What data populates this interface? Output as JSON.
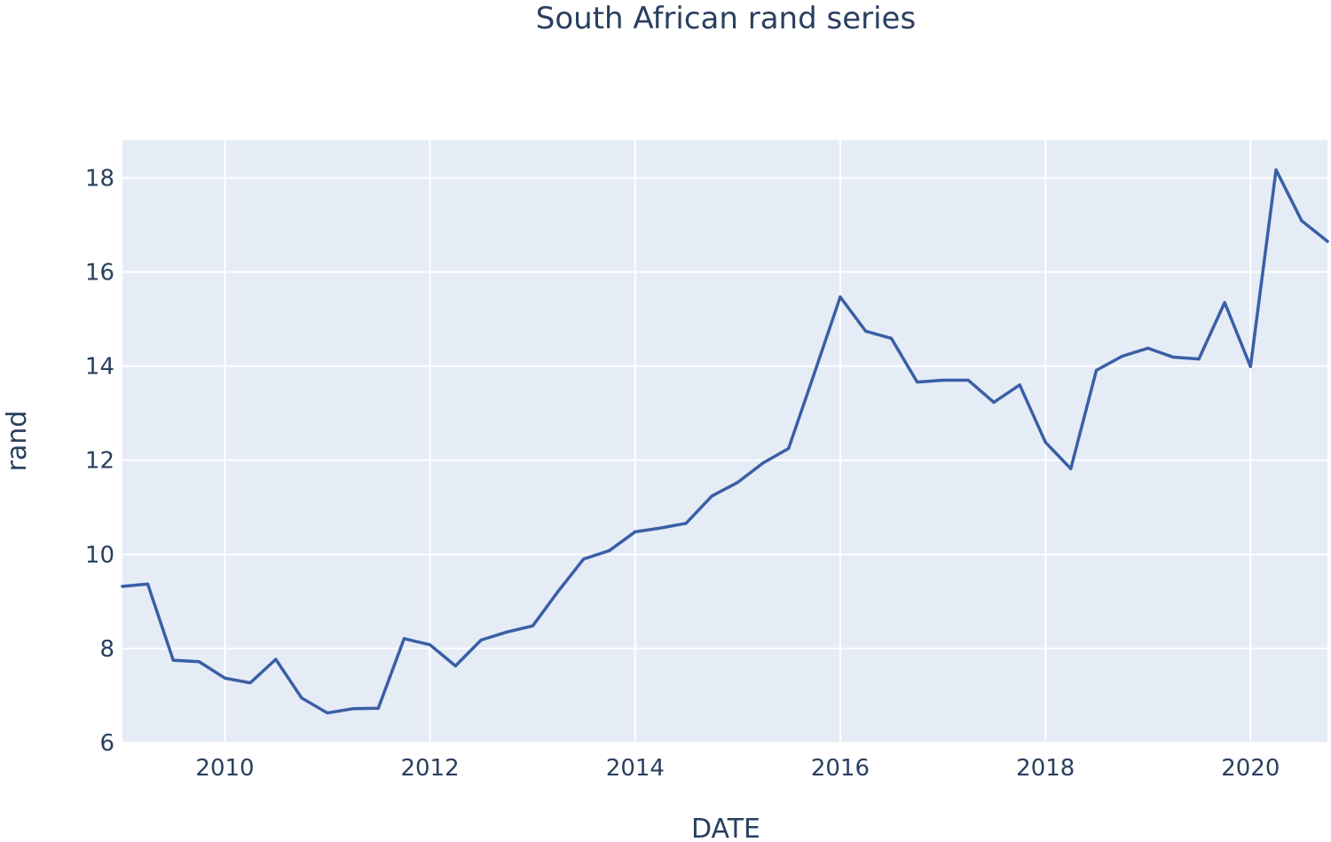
{
  "chart_data": {
    "type": "line",
    "title": "South African rand series",
    "xlabel": "DATE",
    "ylabel": "rand",
    "xlim": [
      "2009-01-01",
      "2020-10-01"
    ],
    "ylim": [
      6,
      18.8
    ],
    "x_ticks": [
      "2010",
      "2012",
      "2014",
      "2016",
      "2018",
      "2020"
    ],
    "y_ticks": [
      6,
      8,
      10,
      12,
      14,
      16,
      18
    ],
    "grid": true,
    "legend": "none",
    "background_color": "#e5ecf6",
    "series_color": "#3a5fa5",
    "x": [
      "2009-01-01",
      "2009-04-01",
      "2009-07-01",
      "2009-10-01",
      "2010-01-01",
      "2010-04-01",
      "2010-07-01",
      "2010-10-01",
      "2011-01-01",
      "2011-04-01",
      "2011-07-01",
      "2011-10-01",
      "2012-01-01",
      "2012-04-01",
      "2012-07-01",
      "2012-10-01",
      "2013-01-01",
      "2013-04-01",
      "2013-07-01",
      "2013-10-01",
      "2014-01-01",
      "2014-04-01",
      "2014-07-01",
      "2014-10-01",
      "2015-01-01",
      "2015-04-01",
      "2015-07-01",
      "2015-10-01",
      "2016-01-01",
      "2016-04-01",
      "2016-07-01",
      "2016-10-01",
      "2017-01-01",
      "2017-04-01",
      "2017-07-01",
      "2017-10-01",
      "2018-01-01",
      "2018-04-01",
      "2018-07-01",
      "2018-10-01",
      "2019-01-01",
      "2019-04-01",
      "2019-07-01",
      "2019-10-01",
      "2020-01-01",
      "2020-04-01",
      "2020-07-01",
      "2020-10-01"
    ],
    "series": [
      {
        "values": [
          9.32,
          9.37,
          7.75,
          7.72,
          7.37,
          7.27,
          7.77,
          6.95,
          6.63,
          6.72,
          6.73,
          8.21,
          8.08,
          7.63,
          8.18,
          8.35,
          8.48,
          9.21,
          9.9,
          10.08,
          10.48,
          10.56,
          10.66,
          11.24,
          11.53,
          11.94,
          12.25,
          13.85,
          15.47,
          14.74,
          14.59,
          13.66,
          13.7,
          13.7,
          13.23,
          13.6,
          12.38,
          11.82,
          13.91,
          14.21,
          14.38,
          14.19,
          14.15,
          15.35,
          13.99,
          18.17,
          17.09,
          16.65
        ]
      }
    ]
  }
}
